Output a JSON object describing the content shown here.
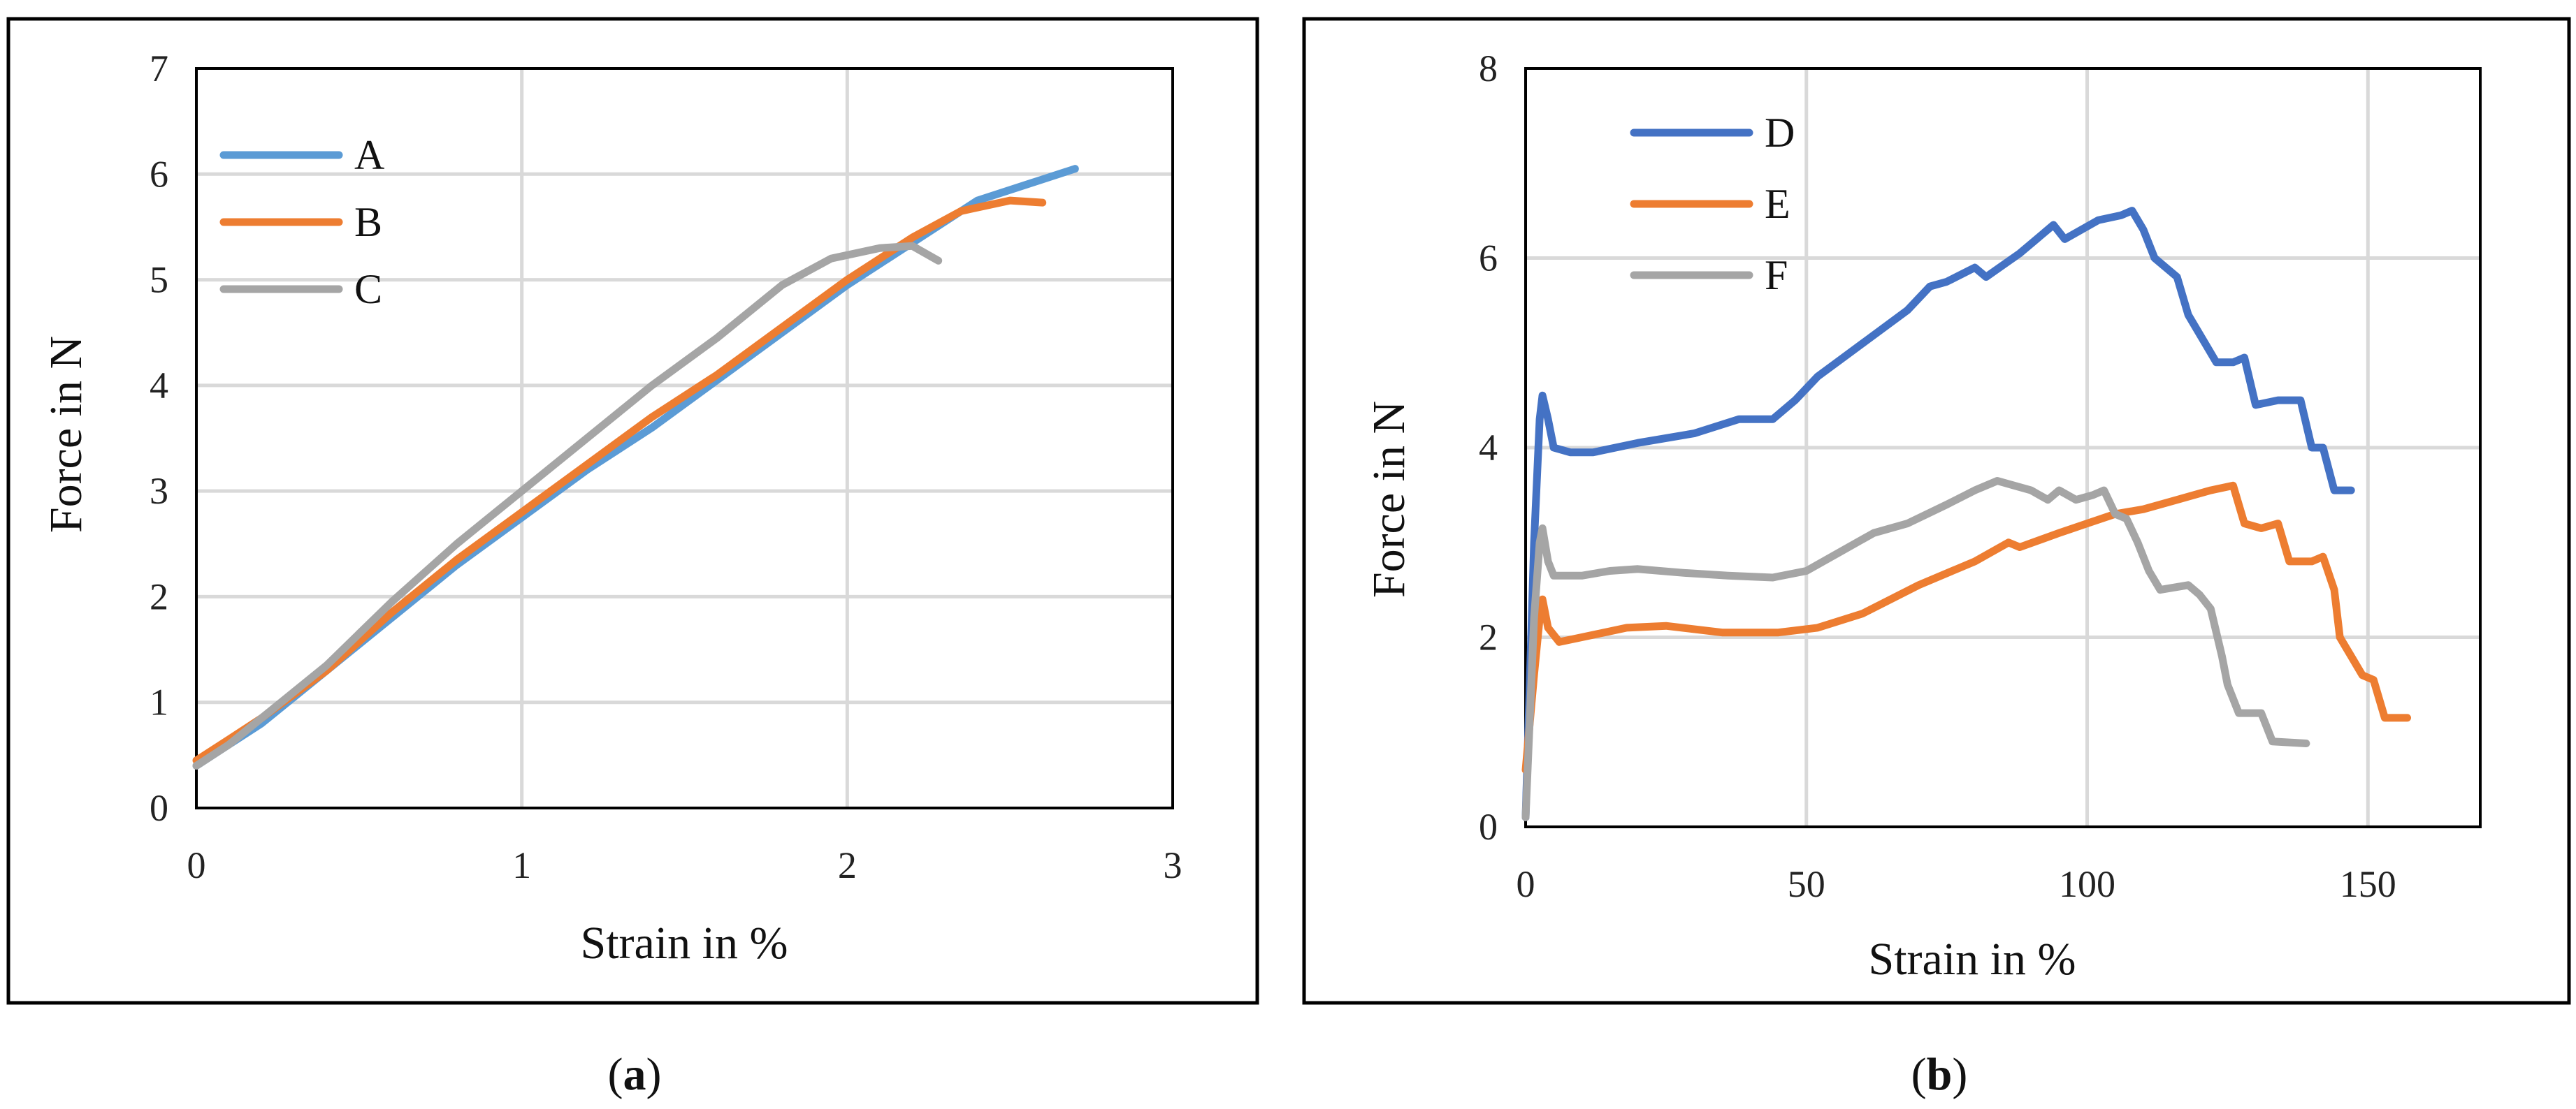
{
  "chart_data": [
    {
      "type": "line",
      "panel_label": "a",
      "xlabel": "Strain in %",
      "ylabel": "Force in N",
      "xlim": [
        0,
        3
      ],
      "ylim": [
        0,
        7
      ],
      "xticks": [
        "0",
        "1",
        "2",
        "3"
      ],
      "yticks": [
        "0",
        "1",
        "2",
        "3",
        "4",
        "5",
        "6",
        "7"
      ],
      "grid": "vertical and horizontal",
      "legend_position": "top-left",
      "series": [
        {
          "name": "A",
          "color": "#5b9bd5",
          "points": [
            [
              0,
              0.4
            ],
            [
              0.1,
              0.6
            ],
            [
              0.2,
              0.8
            ],
            [
              0.4,
              1.3
            ],
            [
              0.6,
              1.8
            ],
            [
              0.8,
              2.3
            ],
            [
              1.0,
              2.75
            ],
            [
              1.2,
              3.2
            ],
            [
              1.4,
              3.6
            ],
            [
              1.6,
              4.05
            ],
            [
              1.8,
              4.5
            ],
            [
              2.0,
              4.95
            ],
            [
              2.2,
              5.35
            ],
            [
              2.4,
              5.75
            ],
            [
              2.55,
              5.9
            ],
            [
              2.7,
              6.05
            ]
          ]
        },
        {
          "name": "B",
          "color": "#ed7d31",
          "points": [
            [
              0,
              0.45
            ],
            [
              0.1,
              0.65
            ],
            [
              0.2,
              0.85
            ],
            [
              0.4,
              1.3
            ],
            [
              0.6,
              1.85
            ],
            [
              0.8,
              2.35
            ],
            [
              1.0,
              2.8
            ],
            [
              1.2,
              3.25
            ],
            [
              1.4,
              3.7
            ],
            [
              1.6,
              4.1
            ],
            [
              1.8,
              4.55
            ],
            [
              2.0,
              5.0
            ],
            [
              2.2,
              5.4
            ],
            [
              2.35,
              5.65
            ],
            [
              2.5,
              5.75
            ],
            [
              2.6,
              5.73
            ]
          ]
        },
        {
          "name": "C",
          "color": "#a5a5a5",
          "points": [
            [
              0,
              0.4
            ],
            [
              0.1,
              0.6
            ],
            [
              0.2,
              0.85
            ],
            [
              0.4,
              1.35
            ],
            [
              0.6,
              1.95
            ],
            [
              0.8,
              2.5
            ],
            [
              1.0,
              3.0
            ],
            [
              1.2,
              3.5
            ],
            [
              1.4,
              4.0
            ],
            [
              1.6,
              4.45
            ],
            [
              1.8,
              4.95
            ],
            [
              1.95,
              5.2
            ],
            [
              2.1,
              5.3
            ],
            [
              2.2,
              5.32
            ],
            [
              2.28,
              5.18
            ]
          ]
        }
      ]
    },
    {
      "type": "line",
      "panel_label": "b",
      "xlabel": "Strain in %",
      "ylabel": "Force in N",
      "xlim": [
        0,
        170
      ],
      "ylim": [
        0,
        8
      ],
      "xticks": [
        "0",
        "50",
        "100",
        "150"
      ],
      "yticks": [
        "0",
        "2",
        "4",
        "6",
        "8"
      ],
      "grid": "vertical and horizontal",
      "legend_position": "top-left",
      "series": [
        {
          "name": "D",
          "color": "#4472c4",
          "points": [
            [
              0,
              0.1
            ],
            [
              1.5,
              3.0
            ],
            [
              2.5,
              4.3
            ],
            [
              3,
              4.55
            ],
            [
              4,
              4.3
            ],
            [
              5,
              4.0
            ],
            [
              8,
              3.95
            ],
            [
              12,
              3.95
            ],
            [
              20,
              4.05
            ],
            [
              30,
              4.15
            ],
            [
              38,
              4.3
            ],
            [
              44,
              4.3
            ],
            [
              48,
              4.5
            ],
            [
              52,
              4.75
            ],
            [
              60,
              5.1
            ],
            [
              68,
              5.45
            ],
            [
              72,
              5.7
            ],
            [
              75,
              5.75
            ],
            [
              80,
              5.9
            ],
            [
              82,
              5.8
            ],
            [
              88,
              6.05
            ],
            [
              94,
              6.35
            ],
            [
              96,
              6.2
            ],
            [
              102,
              6.4
            ],
            [
              106,
              6.45
            ],
            [
              108,
              6.5
            ],
            [
              110,
              6.3
            ],
            [
              112,
              6.0
            ],
            [
              116,
              5.8
            ],
            [
              118,
              5.4
            ],
            [
              121,
              5.1
            ],
            [
              123,
              4.9
            ],
            [
              126,
              4.9
            ],
            [
              128,
              4.95
            ],
            [
              130,
              4.45
            ],
            [
              134,
              4.5
            ],
            [
              138,
              4.5
            ],
            [
              140,
              4.0
            ],
            [
              142,
              4.0
            ],
            [
              144,
              3.55
            ],
            [
              147,
              3.55
            ]
          ]
        },
        {
          "name": "E",
          "color": "#ed7d31",
          "points": [
            [
              0,
              0.6
            ],
            [
              1.5,
              1.6
            ],
            [
              2.5,
              2.2
            ],
            [
              3,
              2.4
            ],
            [
              4,
              2.1
            ],
            [
              6,
              1.95
            ],
            [
              10,
              2.0
            ],
            [
              18,
              2.1
            ],
            [
              25,
              2.12
            ],
            [
              35,
              2.05
            ],
            [
              45,
              2.05
            ],
            [
              52,
              2.1
            ],
            [
              60,
              2.25
            ],
            [
              70,
              2.55
            ],
            [
              80,
              2.8
            ],
            [
              86,
              3.0
            ],
            [
              88,
              2.95
            ],
            [
              95,
              3.1
            ],
            [
              100,
              3.2
            ],
            [
              105,
              3.3
            ],
            [
              110,
              3.35
            ],
            [
              116,
              3.45
            ],
            [
              122,
              3.55
            ],
            [
              126,
              3.6
            ],
            [
              128,
              3.2
            ],
            [
              131,
              3.15
            ],
            [
              134,
              3.2
            ],
            [
              136,
              2.8
            ],
            [
              140,
              2.8
            ],
            [
              142,
              2.85
            ],
            [
              144,
              2.5
            ],
            [
              145,
              2.0
            ],
            [
              147,
              1.8
            ],
            [
              149,
              1.6
            ],
            [
              151,
              1.55
            ],
            [
              153,
              1.15
            ],
            [
              157,
              1.15
            ]
          ]
        },
        {
          "name": "F",
          "color": "#a5a5a5",
          "points": [
            [
              0,
              0.1
            ],
            [
              1.5,
              2.2
            ],
            [
              2.5,
              3.0
            ],
            [
              3,
              3.15
            ],
            [
              4,
              2.8
            ],
            [
              5,
              2.65
            ],
            [
              10,
              2.65
            ],
            [
              15,
              2.7
            ],
            [
              20,
              2.72
            ],
            [
              28,
              2.68
            ],
            [
              36,
              2.65
            ],
            [
              44,
              2.63
            ],
            [
              50,
              2.7
            ],
            [
              56,
              2.9
            ],
            [
              62,
              3.1
            ],
            [
              68,
              3.2
            ],
            [
              75,
              3.4
            ],
            [
              80,
              3.55
            ],
            [
              84,
              3.65
            ],
            [
              87,
              3.6
            ],
            [
              90,
              3.55
            ],
            [
              93,
              3.45
            ],
            [
              95,
              3.55
            ],
            [
              98,
              3.45
            ],
            [
              101,
              3.5
            ],
            [
              103,
              3.55
            ],
            [
              105,
              3.3
            ],
            [
              107,
              3.25
            ],
            [
              109,
              3.0
            ],
            [
              111,
              2.7
            ],
            [
              113,
              2.5
            ],
            [
              118,
              2.55
            ],
            [
              120,
              2.45
            ],
            [
              122,
              2.3
            ],
            [
              124,
              1.8
            ],
            [
              125,
              1.5
            ],
            [
              127,
              1.2
            ],
            [
              131,
              1.2
            ],
            [
              133,
              0.9
            ],
            [
              139,
              0.88
            ]
          ]
        }
      ]
    }
  ]
}
